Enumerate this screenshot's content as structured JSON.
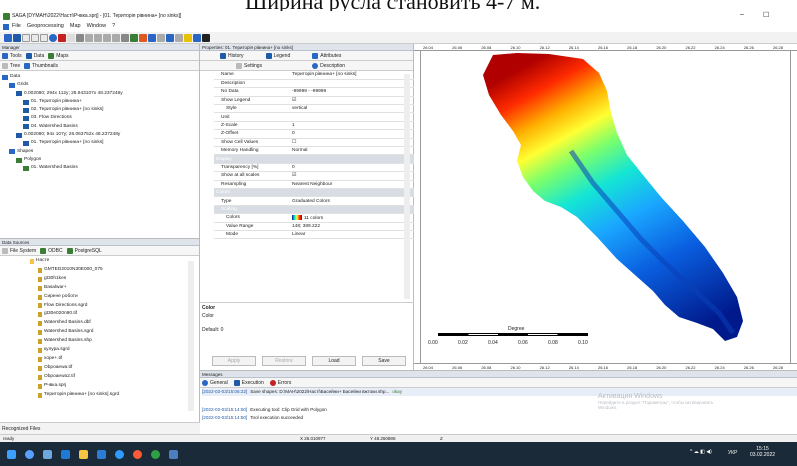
{
  "caption": {
    "text": "Ширина русла становить 4-7 м."
  },
  "window": {
    "title": "SAGA [DYMAH\\2022\\Насті\\Рчвка.sprj] - [01. Територія рівнина+ [no sinks]]",
    "controls": {
      "minimize": "–",
      "maximize": "☐"
    }
  },
  "menu": [
    "File",
    "Geoprocessing",
    "Map",
    "Window",
    "?"
  ],
  "manager": {
    "title": "Manager",
    "tabs": [
      "Tools",
      "Data",
      "Maps"
    ],
    "subtabs": [
      "Tree",
      "Thumbnails"
    ],
    "tree": [
      {
        "label": "Data",
        "level": 0,
        "icon": "folder"
      },
      {
        "label": "Grids",
        "level": 1,
        "icon": "folder"
      },
      {
        "label": "0.002080; 294x 112y; 25.943107x 48.237248y",
        "level": 2,
        "icon": "grid"
      },
      {
        "label": "01. Територія рівнина+",
        "level": 3,
        "icon": "grid"
      },
      {
        "label": "02. Територія рівнина+ [no sinks]",
        "level": 3,
        "icon": "grid"
      },
      {
        "label": "03. Flow Directions",
        "level": 3,
        "icon": "grid"
      },
      {
        "label": "04. Watershed Basins",
        "level": 3,
        "icon": "grid"
      },
      {
        "label": "0.002080; 94x 107y; 26.063752x 48.237248y",
        "level": 2,
        "icon": "grid"
      },
      {
        "label": "01. Територія рівнина+ [no sinks]",
        "level": 3,
        "icon": "grid"
      },
      {
        "label": "Shapes",
        "level": 1,
        "icon": "folder"
      },
      {
        "label": "Polygon",
        "level": 2,
        "icon": "polygon"
      },
      {
        "label": "01. Watershed Basins",
        "level": 3,
        "icon": "polygon"
      }
    ]
  },
  "datasources": {
    "title": "Data Sources",
    "tabs": [
      "File System",
      "ODBC",
      "PostgreSQL"
    ],
    "files": [
      {
        "label": "Насте",
        "level": 0
      },
      {
        "label": "GMTED2010N30E000_075",
        "level": 1
      },
      {
        "label": "gt30h1kes",
        "level": 1
      },
      {
        "label": "Basalwar+",
        "level": 1
      },
      {
        "label": "Сирене роботи",
        "level": 1
      },
      {
        "label": "Flow Directions.sgrd",
        "level": 1
      },
      {
        "label": "gt30e020n90.tif",
        "level": 1
      },
      {
        "label": "Watershed Basins.dbf",
        "level": 1
      },
      {
        "label": "Watershed Basins.sgrd",
        "level": 1
      },
      {
        "label": "Watershed Basins.shp",
        "level": 1
      },
      {
        "label": "кулура.sgrd",
        "level": 1
      },
      {
        "label": "хоре+.tif",
        "level": 1
      },
      {
        "label": "Obpoaewa.tif",
        "level": 1
      },
      {
        "label": "Obpoaewa2.tif",
        "level": 1
      },
      {
        "label": "Рчвка.sprj",
        "level": 1
      },
      {
        "label": "Територія рівнина+ [no sinks].sgrd",
        "level": 1
      }
    ]
  },
  "recognized_files": "Recognized Files",
  "properties": {
    "title": "Properties: 01. Територія рівнина+ [no sinks]",
    "tabs_top": [
      "History",
      "Legend",
      "Attributes"
    ],
    "tabs_bottom": [
      "Settings",
      "Description"
    ],
    "rows": [
      {
        "k": "Name",
        "v": "Територія рівнина+ [no sinks]",
        "section": false,
        "indent": 1
      },
      {
        "k": "Description",
        "v": "",
        "section": false,
        "indent": 1
      },
      {
        "k": "No Data",
        "v": "-99999 - -99999",
        "section": false,
        "indent": 1
      },
      {
        "k": "Show Legend",
        "v": "☑",
        "section": false,
        "indent": 1
      },
      {
        "k": "Style",
        "v": "vertical",
        "section": false,
        "indent": 2
      },
      {
        "k": "Unit",
        "v": "",
        "section": false,
        "indent": 1
      },
      {
        "k": "Z-Scale",
        "v": "1",
        "section": false,
        "indent": 1
      },
      {
        "k": "Z-Offset",
        "v": "0",
        "section": false,
        "indent": 1
      },
      {
        "k": "Show Cell Values",
        "v": "☐",
        "section": false,
        "indent": 1
      },
      {
        "k": "Memory Handling",
        "v": "Normal",
        "section": false,
        "indent": 1
      },
      {
        "k": "Display",
        "v": "",
        "section": true,
        "indent": 0
      },
      {
        "k": "Transparency [%]",
        "v": "0",
        "section": false,
        "indent": 1
      },
      {
        "k": "Show at all scales",
        "v": "☑",
        "section": false,
        "indent": 1
      },
      {
        "k": "Resampling",
        "v": "Nearest Neighbour",
        "section": false,
        "indent": 1
      },
      {
        "k": "Colors",
        "v": "",
        "section": true,
        "indent": 0
      },
      {
        "k": "Type",
        "v": "Graduated Colors",
        "section": false,
        "indent": 1
      },
      {
        "k": "Scaling",
        "v": "",
        "section": true,
        "indent": 1
      },
      {
        "k": "Colors",
        "v": "11 colors",
        "section": false,
        "indent": 2
      },
      {
        "k": "Value Range",
        "v": "148; 389.222",
        "section": false,
        "indent": 2
      },
      {
        "k": "Mode",
        "v": "Linear",
        "section": false,
        "indent": 2
      }
    ],
    "desc_title": "Color",
    "desc_lines": [
      "Color",
      "",
      "Default: 0"
    ],
    "buttons": [
      "Apply",
      "Restore",
      "Load",
      "Save"
    ]
  },
  "map": {
    "x_ticks": [
      "26.04",
      "26.06",
      "26.08",
      "26.10",
      "26.12",
      "26.14",
      "26.16",
      "26.18",
      "26.20",
      "26.22",
      "26.24",
      "26.26",
      "26.28"
    ],
    "scalebar": {
      "unit": "Degree",
      "labels": [
        "0.00",
        "0.02",
        "0.04",
        "0.06",
        "0.08",
        "0.10"
      ]
    }
  },
  "messages": {
    "title": "Messages",
    "tabs": [
      "General",
      "Execution",
      "Errors"
    ],
    "lines": [
      {
        "time": "[2022-02-03/15:06:22]",
        "text": "Save shapes: D:\\MAH\\2022\\Насті\\Басейни+ Басейни вжтоки.shp...",
        "status": "okay"
      },
      {
        "time": "[2022-02-03/15:14:50]",
        "text": "Executing tool: Clip Grid with Polygon",
        "status": ""
      },
      {
        "time": "[2022-02-03/15:14:50]",
        "text": "Tool execution succeeded",
        "status": ""
      }
    ]
  },
  "watermark": {
    "line1": "Активация Windows",
    "line2": "Перейдите в раздел \"Параметры\", чтобы активировать",
    "line3": "Windows."
  },
  "statusbar": {
    "left": "ready",
    "x": "X 26.010977",
    "y": "Y 48.250888",
    "z": "Z"
  },
  "taskbar": {
    "lang": "УКР",
    "time": "15:15",
    "date": "03.02.2022"
  },
  "colors": {
    "accent": "#2a66c4",
    "panel": "#dfe4ea",
    "taskbar": "#1a2a38"
  }
}
